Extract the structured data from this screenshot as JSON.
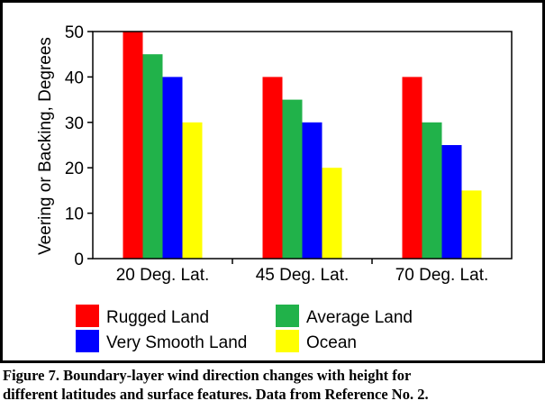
{
  "chart_data": {
    "type": "bar",
    "categories": [
      "20 Deg. Lat.",
      "45 Deg. Lat.",
      "70 Deg. Lat."
    ],
    "series": [
      {
        "name": "Rugged Land",
        "values": [
          50,
          40,
          40
        ],
        "color": "#ff0000"
      },
      {
        "name": "Average Land",
        "values": [
          45,
          35,
          30
        ],
        "color": "#21b24a"
      },
      {
        "name": "Very Smooth Land",
        "values": [
          40,
          30,
          25
        ],
        "color": "#0000ff"
      },
      {
        "name": "Ocean",
        "values": [
          30,
          20,
          15
        ],
        "color": "#ffff00"
      }
    ],
    "ylabel": "Veering or Backing, Degrees",
    "xlabel": "",
    "ylim": [
      0,
      50
    ],
    "yticks": [
      0,
      10,
      20,
      30,
      40,
      50
    ],
    "grid": false,
    "legend_position": "bottom"
  },
  "caption": {
    "line1": "Figure 7.  Boundary-layer wind direction changes with height for",
    "line2": "different latitudes and surface features.   Data from Reference No. 2."
  }
}
